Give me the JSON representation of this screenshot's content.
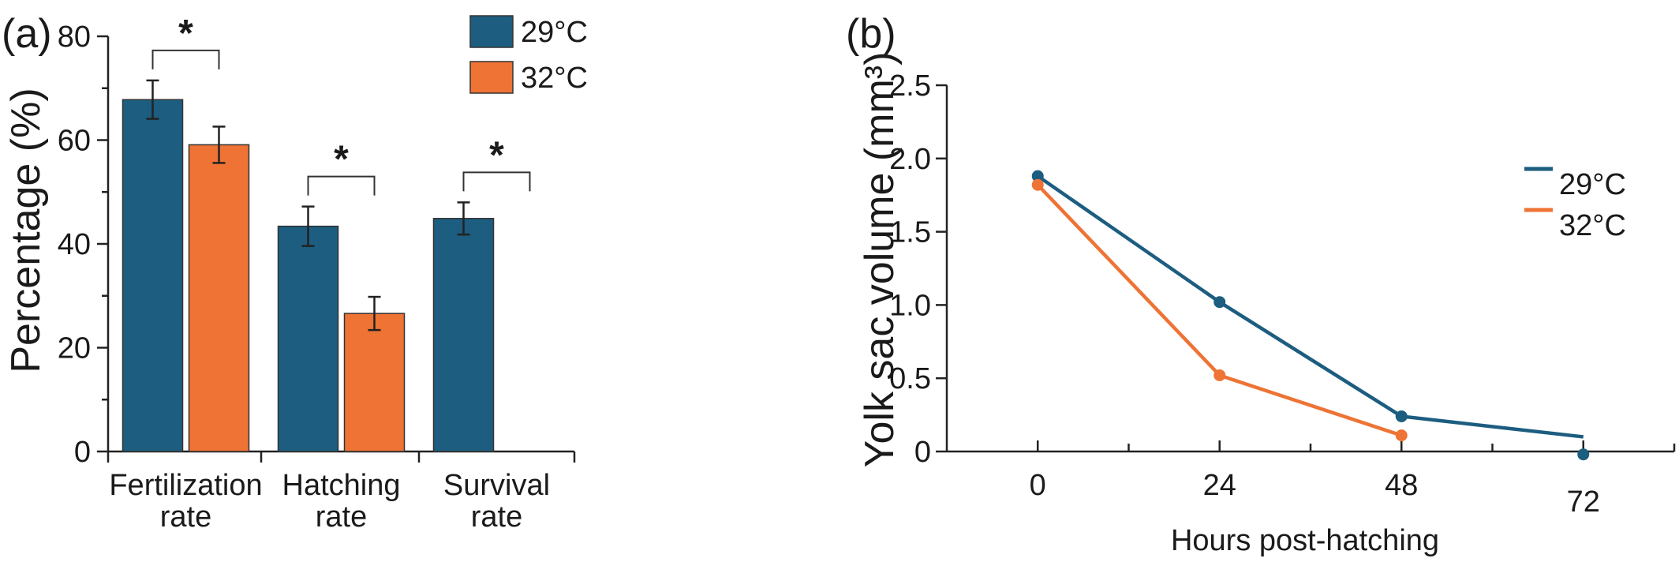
{
  "colors": {
    "t29": "#1c5d80",
    "t32": "#ee7334"
  },
  "chart_data": [
    {
      "panel_label": "(a)",
      "type": "bar",
      "categories": [
        [
          "Fertilization",
          "rate"
        ],
        [
          "Hatching",
          "rate"
        ],
        [
          "Survival",
          "rate"
        ]
      ],
      "series": [
        {
          "name": "29°C",
          "color": "#1c5d80",
          "values": [
            67.8,
            43.4,
            44.9
          ],
          "errors": [
            3.7,
            3.8,
            3.1
          ]
        },
        {
          "name": "32°C",
          "color": "#ee7334",
          "values": [
            59.1,
            26.6,
            null
          ],
          "errors": [
            3.5,
            3.2,
            null
          ]
        }
      ],
      "significance": [
        {
          "category": 0,
          "label": "*"
        },
        {
          "category": 1,
          "label": "*"
        },
        {
          "category": 2,
          "label": "*"
        }
      ],
      "ylabel": "Percentage (%)",
      "ylim": [
        0,
        80
      ],
      "yticks": [
        0,
        20,
        40,
        60,
        80
      ],
      "legend": "top-right",
      "grid": false
    },
    {
      "panel_label": "(b)",
      "type": "line",
      "xlabel": "Hours post-hatching",
      "ylabel": "Yolk sac volume (mm³)",
      "xticks": [
        0,
        24,
        48,
        72
      ],
      "yticks": [
        "0",
        "0.5",
        "1.0",
        "1.5",
        "2.0",
        "2.5"
      ],
      "xlim": [
        -12,
        84
      ],
      "ylim": [
        0,
        2.5
      ],
      "series": [
        {
          "name": "29°C",
          "color": "#1c5d80",
          "x": [
            0,
            24,
            48,
            72
          ],
          "y": [
            1.88,
            1.02,
            0.24,
            0.1
          ],
          "markers_at": [
            0,
            24,
            48
          ],
          "extra_points": [
            {
              "x": 72,
              "y": -0.02
            }
          ]
        },
        {
          "name": "32°C",
          "color": "#ee7334",
          "x": [
            0,
            24,
            48
          ],
          "y": [
            1.82,
            0.52,
            0.11
          ]
        }
      ],
      "legend": "right",
      "grid": false
    }
  ]
}
